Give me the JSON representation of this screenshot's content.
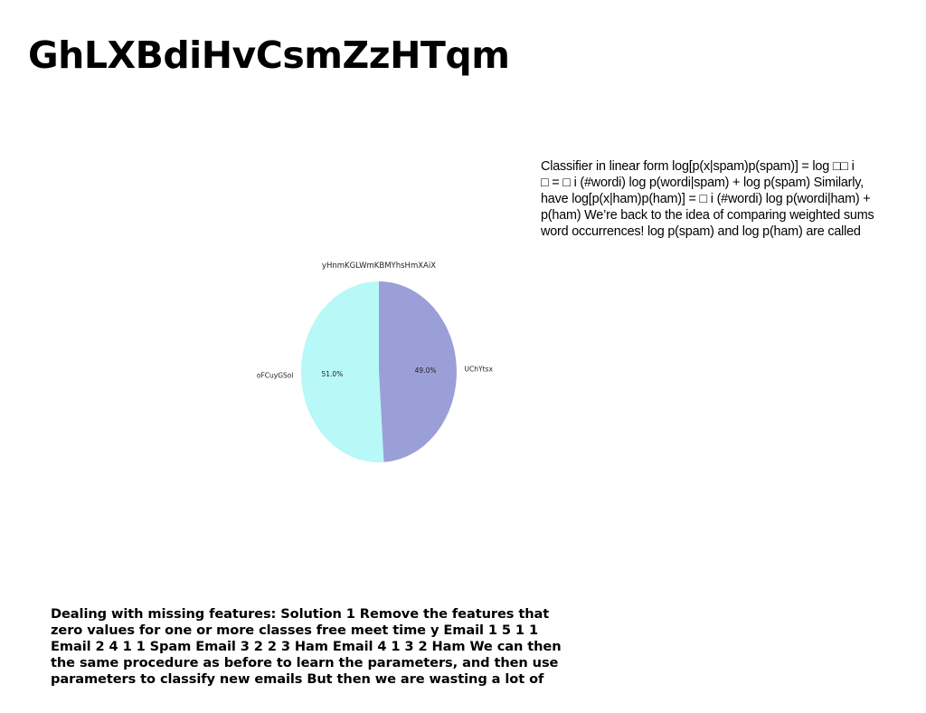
{
  "page": {
    "title": "GhLXBdiHvCsmZzHTqm"
  },
  "side_text": {
    "lines": [
      "Classifier in linear form log[p(x|spam)p(spam)] = log □□ i",
      "□ = □ i (#wordi) log p(wordi|spam) + log p(spam) Similarly,",
      "have log[p(x|ham)p(ham)] = □ i (#wordi) log p(wordi|ham) +",
      "p(ham) We’re back to the idea of comparing weighted sums",
      "word occurrences! log p(spam) and log p(ham) are called"
    ]
  },
  "bottom_text": {
    "lines": [
      "Dealing with missing features: Solution 1 Remove the features that",
      "zero values for one or more classes free meet time y Email 1 5 1 1",
      "Email 2 4 1 1 Spam Email 3 2 2 3 Ham Email 4 1 3 2 Ham We can then",
      "the same procedure as before to learn the parameters, and then use",
      "parameters to classify new emails But then we are wasting a lot of"
    ]
  },
  "chart_data": {
    "type": "pie",
    "title": "yHnmKGLWmKBMYhsHmXAiX",
    "slices": [
      {
        "label": "UChYtsx",
        "value": 49.0,
        "pct_label": "49.0%",
        "color": "#9b9fd8"
      },
      {
        "label": "oFCuyGSol",
        "value": 51.0,
        "pct_label": "51.0%",
        "color": "#b8f8f6"
      }
    ],
    "start_angle_deg": 90,
    "direction": "clockwise",
    "legend": "none"
  }
}
